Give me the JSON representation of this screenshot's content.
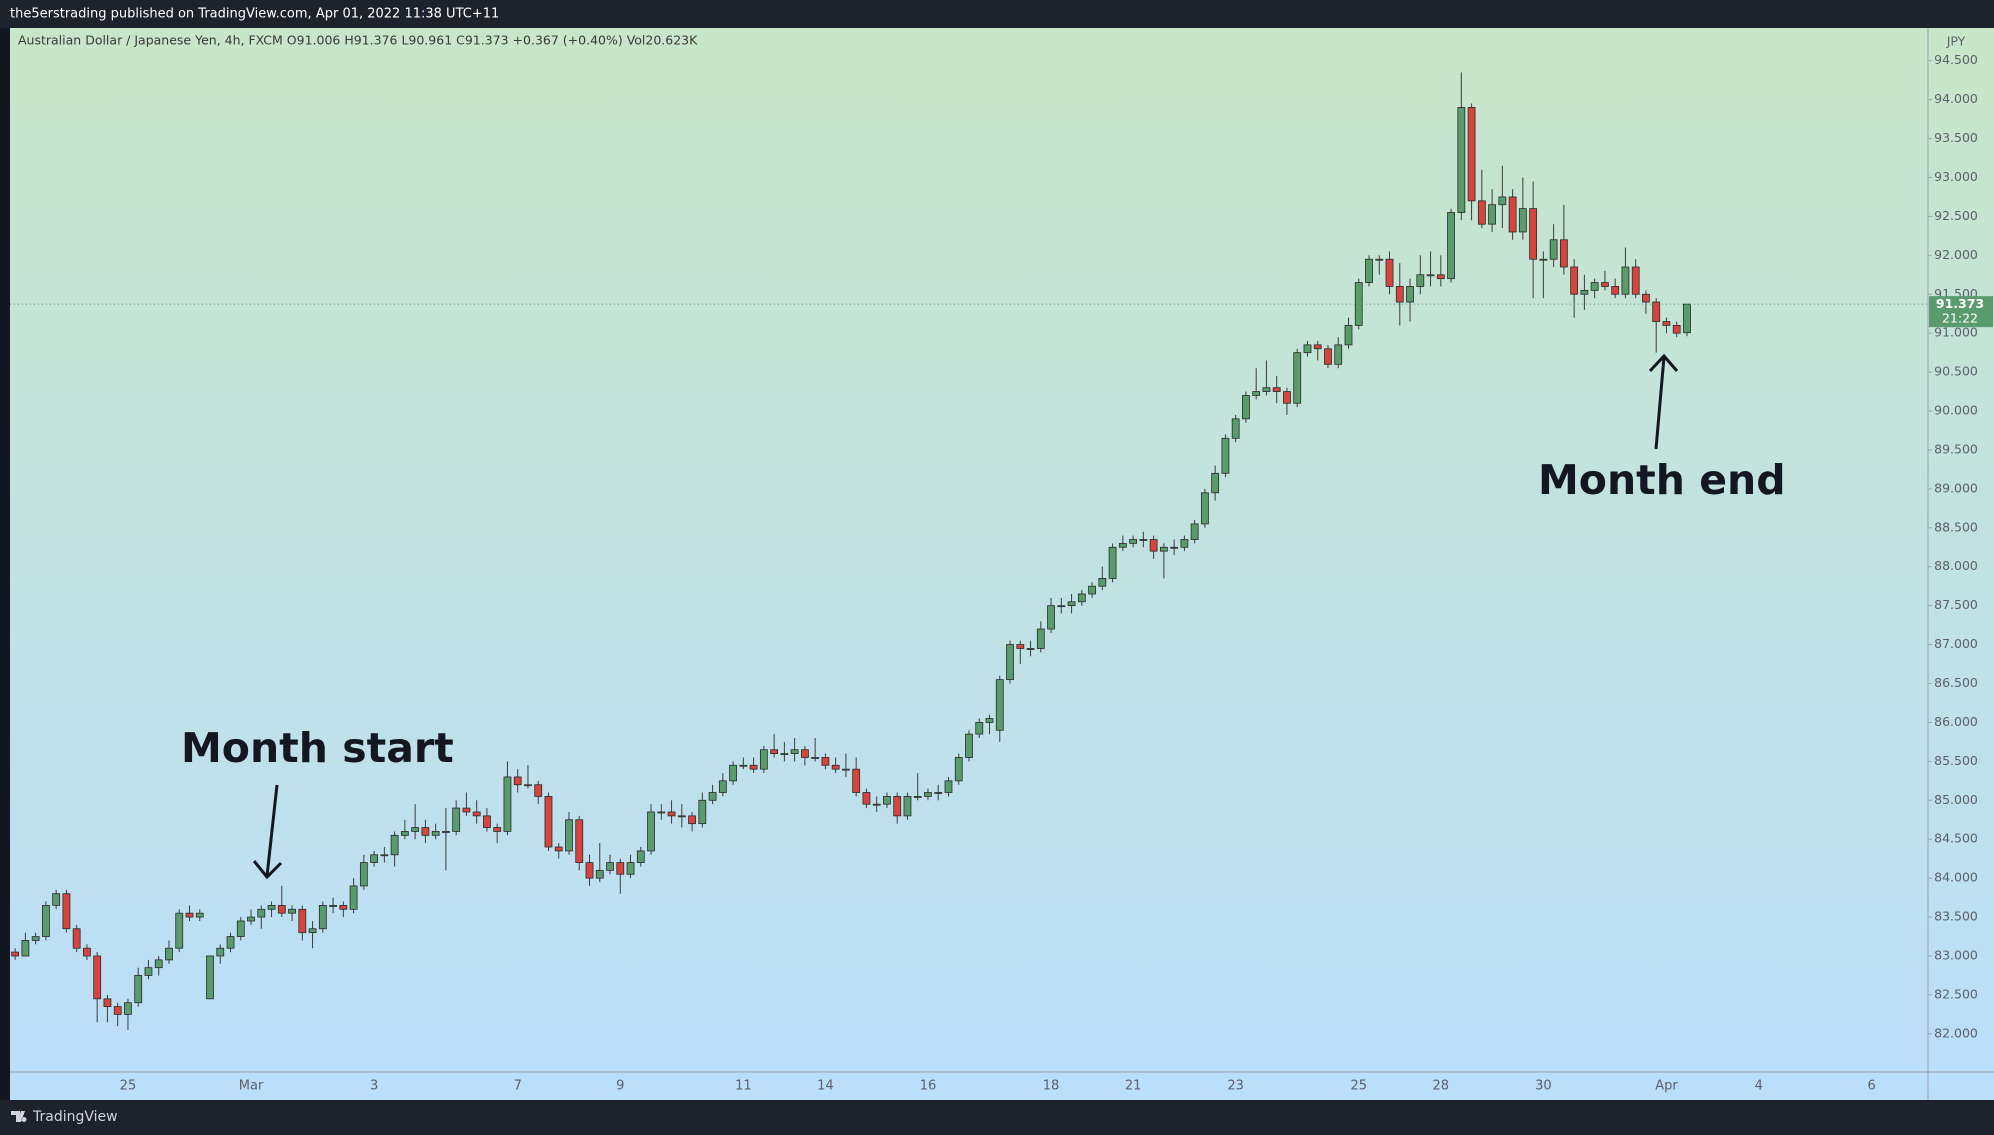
{
  "chart_data": {
    "type": "candlestick",
    "header": "the5erstrading published on TradingView.com, Apr 01, 2022 11:38 UTC+11",
    "legend": "Australian Dollar / Japanese Yen, 4h, FXCM  O91.006  H91.376  L90.961  C91.373  +0.367 (+0.40%)  Vol20.623K",
    "currency": "JPY",
    "countdown": "21:22",
    "annotations": [
      "Month start",
      "Month end"
    ],
    "brand": "TradingView",
    "up_color": "#5a9b6e",
    "down_color": "#d6453d",
    "wick_color": "#3c3c3c",
    "last_price_color": "#5a9b6e",
    "categories": [
      null,
      null,
      null,
      null,
      null,
      null,
      null,
      null,
      null,
      null,
      null,
      "25",
      null,
      null,
      null,
      null,
      null,
      null,
      null,
      null,
      null,
      null,
      null,
      "Mar",
      null,
      null,
      null,
      null,
      null,
      null,
      null,
      null,
      null,
      null,
      null,
      "3",
      null,
      null,
      null,
      null,
      null,
      null,
      null,
      null,
      null,
      null,
      null,
      null,
      null,
      "7",
      null,
      null,
      null,
      null,
      null,
      null,
      null,
      null,
      null,
      "9",
      null,
      null,
      null,
      null,
      null,
      null,
      null,
      null,
      null,
      null,
      null,
      "11",
      null,
      null,
      null,
      null,
      null,
      null,
      null,
      "14",
      null,
      null,
      null,
      null,
      null,
      null,
      null,
      null,
      null,
      "16",
      null,
      null,
      null,
      null,
      null,
      null,
      null,
      null,
      null,
      null,
      null,
      "18",
      null,
      null,
      null,
      null,
      null,
      null,
      null,
      "21",
      null,
      null,
      null,
      null,
      null,
      null,
      null,
      null,
      null,
      "23",
      null,
      null,
      null,
      null,
      null,
      null,
      null,
      null,
      null,
      null,
      null,
      "25",
      null,
      null,
      null,
      null,
      null,
      null,
      null,
      "28",
      null,
      null,
      null,
      null,
      null,
      null,
      null,
      null,
      null,
      "30",
      null,
      null,
      null,
      null,
      null,
      null,
      null,
      null,
      null,
      null,
      null,
      "Apr",
      null,
      null,
      null,
      null,
      null,
      null,
      null,
      null,
      "4",
      null,
      null,
      null,
      null,
      null,
      null,
      null,
      null,
      null,
      null,
      "6",
      null,
      null,
      null,
      null,
      null
    ],
    "open": [
      83.05,
      83.0,
      83.2,
      83.25,
      83.65,
      83.8,
      83.35,
      83.1,
      83.0,
      82.45,
      82.35,
      82.25,
      82.4,
      82.75,
      82.85,
      82.95,
      83.1,
      83.55,
      83.5,
      82.45,
      83.0,
      83.1,
      83.25,
      83.45,
      83.5,
      83.6,
      83.65,
      83.55,
      83.6,
      83.3,
      83.35,
      83.65,
      83.65,
      83.6,
      83.9,
      84.2,
      84.3,
      84.3,
      84.55,
      84.6,
      84.65,
      84.55,
      84.6,
      84.6,
      84.9,
      84.85,
      84.8,
      84.65,
      84.6,
      85.3,
      85.2,
      85.2,
      85.05,
      84.4,
      84.35,
      84.75,
      84.2,
      84.0,
      84.1,
      84.2,
      84.05,
      84.2,
      84.35,
      84.85,
      84.85,
      84.8,
      84.8,
      84.7,
      85.0,
      85.1,
      85.25,
      85.45,
      85.45,
      85.4,
      85.65,
      85.6,
      85.6,
      85.65,
      85.55,
      85.55,
      85.45,
      85.4,
      85.4,
      85.1,
      84.95,
      84.95,
      85.05,
      84.8,
      85.05,
      85.05,
      85.1,
      85.1,
      85.25,
      85.55,
      85.85,
      86.0,
      85.9,
      86.55,
      87.0,
      86.95,
      86.95,
      87.2,
      87.5,
      87.5,
      87.55,
      87.65,
      87.75,
      87.85,
      88.25,
      88.3,
      88.35,
      88.35,
      88.2,
      88.25,
      88.25,
      88.35,
      88.55,
      88.95,
      89.2,
      89.65,
      89.9,
      90.2,
      90.25,
      90.3,
      90.25,
      90.1,
      90.75,
      90.85,
      90.8,
      90.6,
      90.85,
      91.1,
      91.65,
      91.95,
      91.95,
      91.6,
      91.4,
      91.6,
      91.75,
      91.75,
      91.7,
      92.55,
      93.9,
      92.7,
      92.4,
      92.65,
      92.75,
      92.3,
      92.6,
      91.95,
      91.95,
      92.2,
      91.85,
      91.5,
      91.55,
      91.65,
      91.6,
      91.5,
      91.85,
      91.5,
      91.4,
      91.15,
      91.1,
      91.006,
      null,
      null,
      null,
      null,
      null,
      null,
      null,
      null,
      null,
      null,
      null,
      null,
      null,
      null,
      null,
      null,
      null,
      null,
      null,
      null,
      null,
      null,
      null
    ],
    "high": [
      83.1,
      83.3,
      83.3,
      83.7,
      83.85,
      83.85,
      83.4,
      83.15,
      83.05,
      82.5,
      82.4,
      82.45,
      82.85,
      82.95,
      83.0,
      83.2,
      83.6,
      83.65,
      83.6,
      83.0,
      83.15,
      83.3,
      83.5,
      83.6,
      83.65,
      83.7,
      83.9,
      83.65,
      83.65,
      83.45,
      83.7,
      83.75,
      83.7,
      84.0,
      84.3,
      84.35,
      84.4,
      84.6,
      84.75,
      84.95,
      84.75,
      84.7,
      84.9,
      85.0,
      85.1,
      85.0,
      84.9,
      84.7,
      85.5,
      85.4,
      85.45,
      85.25,
      85.1,
      84.45,
      84.85,
      84.8,
      84.3,
      84.45,
      84.3,
      84.25,
      84.3,
      84.4,
      84.95,
      84.95,
      85.0,
      84.95,
      84.85,
      85.1,
      85.2,
      85.35,
      85.5,
      85.55,
      85.55,
      85.7,
      85.85,
      85.75,
      85.8,
      85.7,
      85.8,
      85.6,
      85.55,
      85.6,
      85.55,
      85.15,
      85.05,
      85.1,
      85.1,
      85.1,
      85.35,
      85.15,
      85.2,
      85.3,
      85.6,
      85.9,
      86.05,
      86.1,
      86.6,
      87.05,
      87.05,
      87.05,
      87.3,
      87.6,
      87.6,
      87.65,
      87.7,
      87.8,
      88.0,
      88.3,
      88.4,
      88.4,
      88.45,
      88.4,
      88.3,
      88.35,
      88.4,
      88.6,
      89.0,
      89.3,
      89.7,
      89.95,
      90.25,
      90.55,
      90.65,
      90.45,
      90.3,
      90.8,
      90.9,
      90.9,
      90.85,
      90.95,
      91.2,
      91.7,
      92.0,
      92.0,
      92.05,
      91.9,
      91.7,
      92.0,
      92.05,
      92.0,
      92.6,
      94.35,
      93.95,
      93.1,
      92.85,
      93.15,
      92.85,
      93.0,
      92.95,
      92.05,
      92.4,
      92.65,
      91.95,
      91.75,
      91.7,
      91.8,
      91.7,
      92.1,
      91.95,
      91.55,
      91.45,
      91.2,
      91.15,
      91.376,
      null,
      null,
      null,
      null,
      null,
      null,
      null,
      null,
      null,
      null,
      null,
      null,
      null,
      null,
      null,
      null,
      null,
      null,
      null,
      null,
      null,
      null,
      null
    ],
    "low": [
      82.95,
      83.0,
      83.15,
      83.2,
      83.6,
      83.3,
      83.05,
      82.95,
      82.15,
      82.15,
      82.1,
      82.05,
      82.35,
      82.7,
      82.75,
      82.9,
      83.05,
      83.45,
      83.45,
      82.45,
      82.9,
      83.05,
      83.2,
      83.4,
      83.35,
      83.5,
      83.5,
      83.45,
      83.2,
      83.1,
      83.3,
      83.55,
      83.5,
      83.55,
      83.85,
      84.15,
      84.2,
      84.15,
      84.5,
      84.5,
      84.45,
      84.5,
      84.1,
      84.55,
      84.8,
      84.7,
      84.6,
      84.45,
      84.55,
      85.1,
      85.15,
      84.95,
      84.35,
      84.25,
      84.3,
      84.1,
      83.9,
      83.95,
      84.05,
      83.8,
      84.0,
      84.15,
      84.3,
      84.75,
      84.7,
      84.65,
      84.6,
      84.65,
      84.95,
      85.05,
      85.2,
      85.4,
      85.35,
      85.35,
      85.55,
      85.5,
      85.5,
      85.45,
      85.5,
      85.4,
      85.35,
      85.3,
      85.05,
      84.9,
      84.85,
      84.9,
      84.7,
      84.75,
      85.0,
      85.0,
      85.0,
      85.05,
      85.2,
      85.5,
      85.8,
      85.85,
      85.75,
      86.5,
      86.75,
      86.85,
      86.9,
      87.15,
      87.4,
      87.4,
      87.5,
      87.6,
      87.7,
      87.8,
      88.2,
      88.25,
      88.25,
      88.1,
      87.85,
      88.15,
      88.2,
      88.3,
      88.5,
      88.85,
      89.15,
      89.6,
      89.85,
      90.15,
      90.2,
      90.1,
      89.95,
      90.05,
      90.7,
      90.65,
      90.55,
      90.55,
      90.8,
      91.05,
      91.6,
      91.75,
      91.5,
      91.1,
      91.15,
      91.5,
      91.6,
      91.6,
      91.65,
      92.45,
      92.45,
      92.35,
      92.3,
      92.35,
      92.2,
      92.2,
      91.45,
      91.45,
      91.85,
      91.75,
      91.2,
      91.3,
      91.45,
      91.55,
      91.45,
      91.45,
      91.45,
      91.25,
      90.75,
      91.0,
      90.95,
      90.961,
      null,
      null,
      null,
      null,
      null,
      null,
      null,
      null,
      null,
      null,
      null,
      null,
      null,
      null,
      null,
      null,
      null,
      null,
      null,
      null,
      null,
      null,
      null
    ],
    "close": [
      83.0,
      83.2,
      83.25,
      83.65,
      83.8,
      83.35,
      83.1,
      83.0,
      82.45,
      82.35,
      82.25,
      82.4,
      82.75,
      82.85,
      82.95,
      83.1,
      83.55,
      83.5,
      83.55,
      83.0,
      83.1,
      83.25,
      83.45,
      83.5,
      83.6,
      83.65,
      83.55,
      83.6,
      83.3,
      83.35,
      83.65,
      83.65,
      83.6,
      83.9,
      84.2,
      84.3,
      84.3,
      84.55,
      84.6,
      84.65,
      84.55,
      84.6,
      84.6,
      84.9,
      84.85,
      84.8,
      84.65,
      84.6,
      85.3,
      85.2,
      85.2,
      85.05,
      84.4,
      84.35,
      84.75,
      84.2,
      84.0,
      84.1,
      84.2,
      84.05,
      84.2,
      84.35,
      84.85,
      84.85,
      84.8,
      84.8,
      84.7,
      85.0,
      85.1,
      85.25,
      85.45,
      85.45,
      85.4,
      85.65,
      85.6,
      85.6,
      85.65,
      85.55,
      85.55,
      85.45,
      85.4,
      85.4,
      85.1,
      84.95,
      84.95,
      85.05,
      84.8,
      85.05,
      85.05,
      85.1,
      85.1,
      85.25,
      85.55,
      85.85,
      86.0,
      86.05,
      86.55,
      87.0,
      86.95,
      86.95,
      87.2,
      87.5,
      87.5,
      87.55,
      87.65,
      87.75,
      87.85,
      88.25,
      88.3,
      88.35,
      88.35,
      88.2,
      88.25,
      88.25,
      88.35,
      88.55,
      88.95,
      89.2,
      89.65,
      89.9,
      90.2,
      90.25,
      90.3,
      90.25,
      90.1,
      90.75,
      90.85,
      90.8,
      90.6,
      90.85,
      91.1,
      91.65,
      91.95,
      91.95,
      91.6,
      91.4,
      91.6,
      91.75,
      91.75,
      91.7,
      92.55,
      93.9,
      92.7,
      92.4,
      92.65,
      92.75,
      92.3,
      92.6,
      91.95,
      91.95,
      92.2,
      91.85,
      91.5,
      91.55,
      91.65,
      91.6,
      91.5,
      91.85,
      91.5,
      91.4,
      91.15,
      91.1,
      91.0,
      91.373,
      null,
      null,
      null,
      null,
      null,
      null,
      null,
      null,
      null,
      null,
      null,
      null,
      null,
      null,
      null,
      null,
      null,
      null,
      null,
      null,
      null,
      null,
      null
    ],
    "ylim": [
      81.51,
      94.92
    ],
    "yticks": [
      {
        "value": 82.0,
        "label": "82.000"
      },
      {
        "value": 82.5,
        "label": "82.500"
      },
      {
        "value": 83.0,
        "label": "83.000"
      },
      {
        "value": 83.5,
        "label": "83.500"
      },
      {
        "value": 84.0,
        "label": "84.000"
      },
      {
        "value": 84.5,
        "label": "84.500"
      },
      {
        "value": 85.0,
        "label": "85.000"
      },
      {
        "value": 85.5,
        "label": "85.500"
      },
      {
        "value": 86.0,
        "label": "86.000"
      },
      {
        "value": 86.5,
        "label": "86.500"
      },
      {
        "value": 87.0,
        "label": "87.000"
      },
      {
        "value": 87.5,
        "label": "87.500"
      },
      {
        "value": 88.0,
        "label": "88.000"
      },
      {
        "value": 88.5,
        "label": "88.500"
      },
      {
        "value": 89.0,
        "label": "89.000"
      },
      {
        "value": 89.5,
        "label": "89.500"
      },
      {
        "value": 90.0,
        "label": "90.000"
      },
      {
        "value": 90.5,
        "label": "90.500"
      },
      {
        "value": 91.0,
        "label": "91.000"
      },
      {
        "value": 91.5,
        "label": "91.500"
      },
      {
        "value": 92.0,
        "label": "92.000"
      },
      {
        "value": 92.5,
        "label": "92.500"
      },
      {
        "value": 93.0,
        "label": "93.000"
      },
      {
        "value": 93.5,
        "label": "93.500"
      },
      {
        "value": 94.0,
        "label": "94.000"
      },
      {
        "value": 94.5,
        "label": "94.500"
      }
    ],
    "grid": false
  }
}
